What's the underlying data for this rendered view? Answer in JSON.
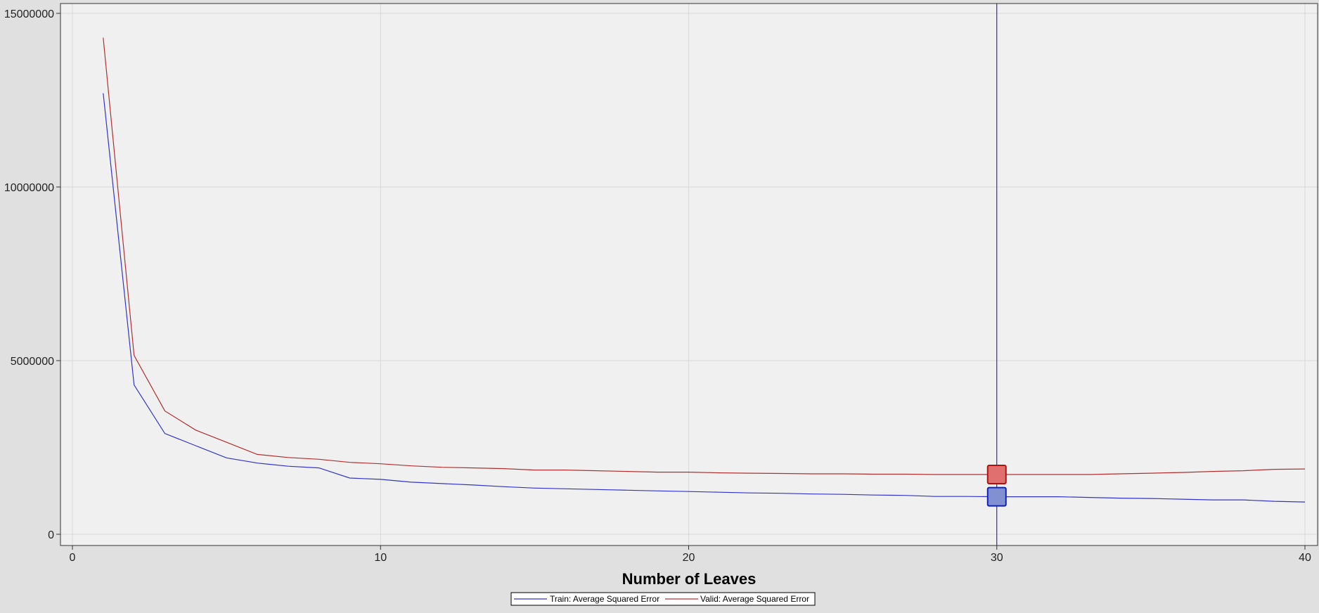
{
  "chart_data": {
    "type": "line",
    "title": "",
    "xlabel": "Number of Leaves",
    "ylabel": "",
    "xlim": [
      0,
      40
    ],
    "ylim": [
      0,
      15000000
    ],
    "x_ticks": [
      0,
      10,
      20,
      30,
      40
    ],
    "y_ticks": [
      0,
      5000000,
      10000000,
      15000000
    ],
    "grid": true,
    "legend_position": "bottom-center",
    "selected_x": 30,
    "x": [
      1,
      2,
      3,
      4,
      5,
      6,
      7,
      8,
      9,
      10,
      11,
      12,
      13,
      14,
      15,
      16,
      17,
      18,
      19,
      20,
      21,
      22,
      23,
      24,
      25,
      26,
      27,
      28,
      29,
      30,
      31,
      32,
      33,
      34,
      35,
      36,
      37,
      38,
      39,
      40
    ],
    "series": [
      {
        "name": "Train: Average Squared Error",
        "color": "#3333cc",
        "values": [
          12700000,
          4300000,
          2900000,
          2550000,
          2200000,
          2050000,
          1960000,
          1910000,
          1620000,
          1580000,
          1500000,
          1460000,
          1420000,
          1370000,
          1330000,
          1310000,
          1290000,
          1270000,
          1250000,
          1230000,
          1210000,
          1190000,
          1180000,
          1160000,
          1150000,
          1130000,
          1120000,
          1090000,
          1090000,
          1080000,
          1080000,
          1080000,
          1060000,
          1040000,
          1030000,
          1010000,
          990000,
          990000,
          950000,
          930000
        ]
      },
      {
        "name": "Valid: Average Squared Error",
        "color": "#b03030",
        "values": [
          14300000,
          5150000,
          3550000,
          3000000,
          2650000,
          2300000,
          2210000,
          2160000,
          2070000,
          2030000,
          1970000,
          1930000,
          1910000,
          1890000,
          1850000,
          1850000,
          1830000,
          1810000,
          1790000,
          1790000,
          1770000,
          1760000,
          1750000,
          1740000,
          1740000,
          1730000,
          1730000,
          1720000,
          1720000,
          1720000,
          1720000,
          1720000,
          1720000,
          1740000,
          1760000,
          1780000,
          1810000,
          1830000,
          1870000,
          1880000
        ]
      }
    ],
    "markers": [
      {
        "series": "Valid: Average Squared Error",
        "fill": "#e07070",
        "stroke": "#b01010"
      },
      {
        "series": "Train: Average Squared Error",
        "fill": "#8090d0",
        "stroke": "#1020c0"
      }
    ],
    "colors": {
      "background": "#e0e0e0",
      "plot_background": "#f0f0f0",
      "grid": "#d8d8d8",
      "reference_line": "#1010a0"
    }
  }
}
